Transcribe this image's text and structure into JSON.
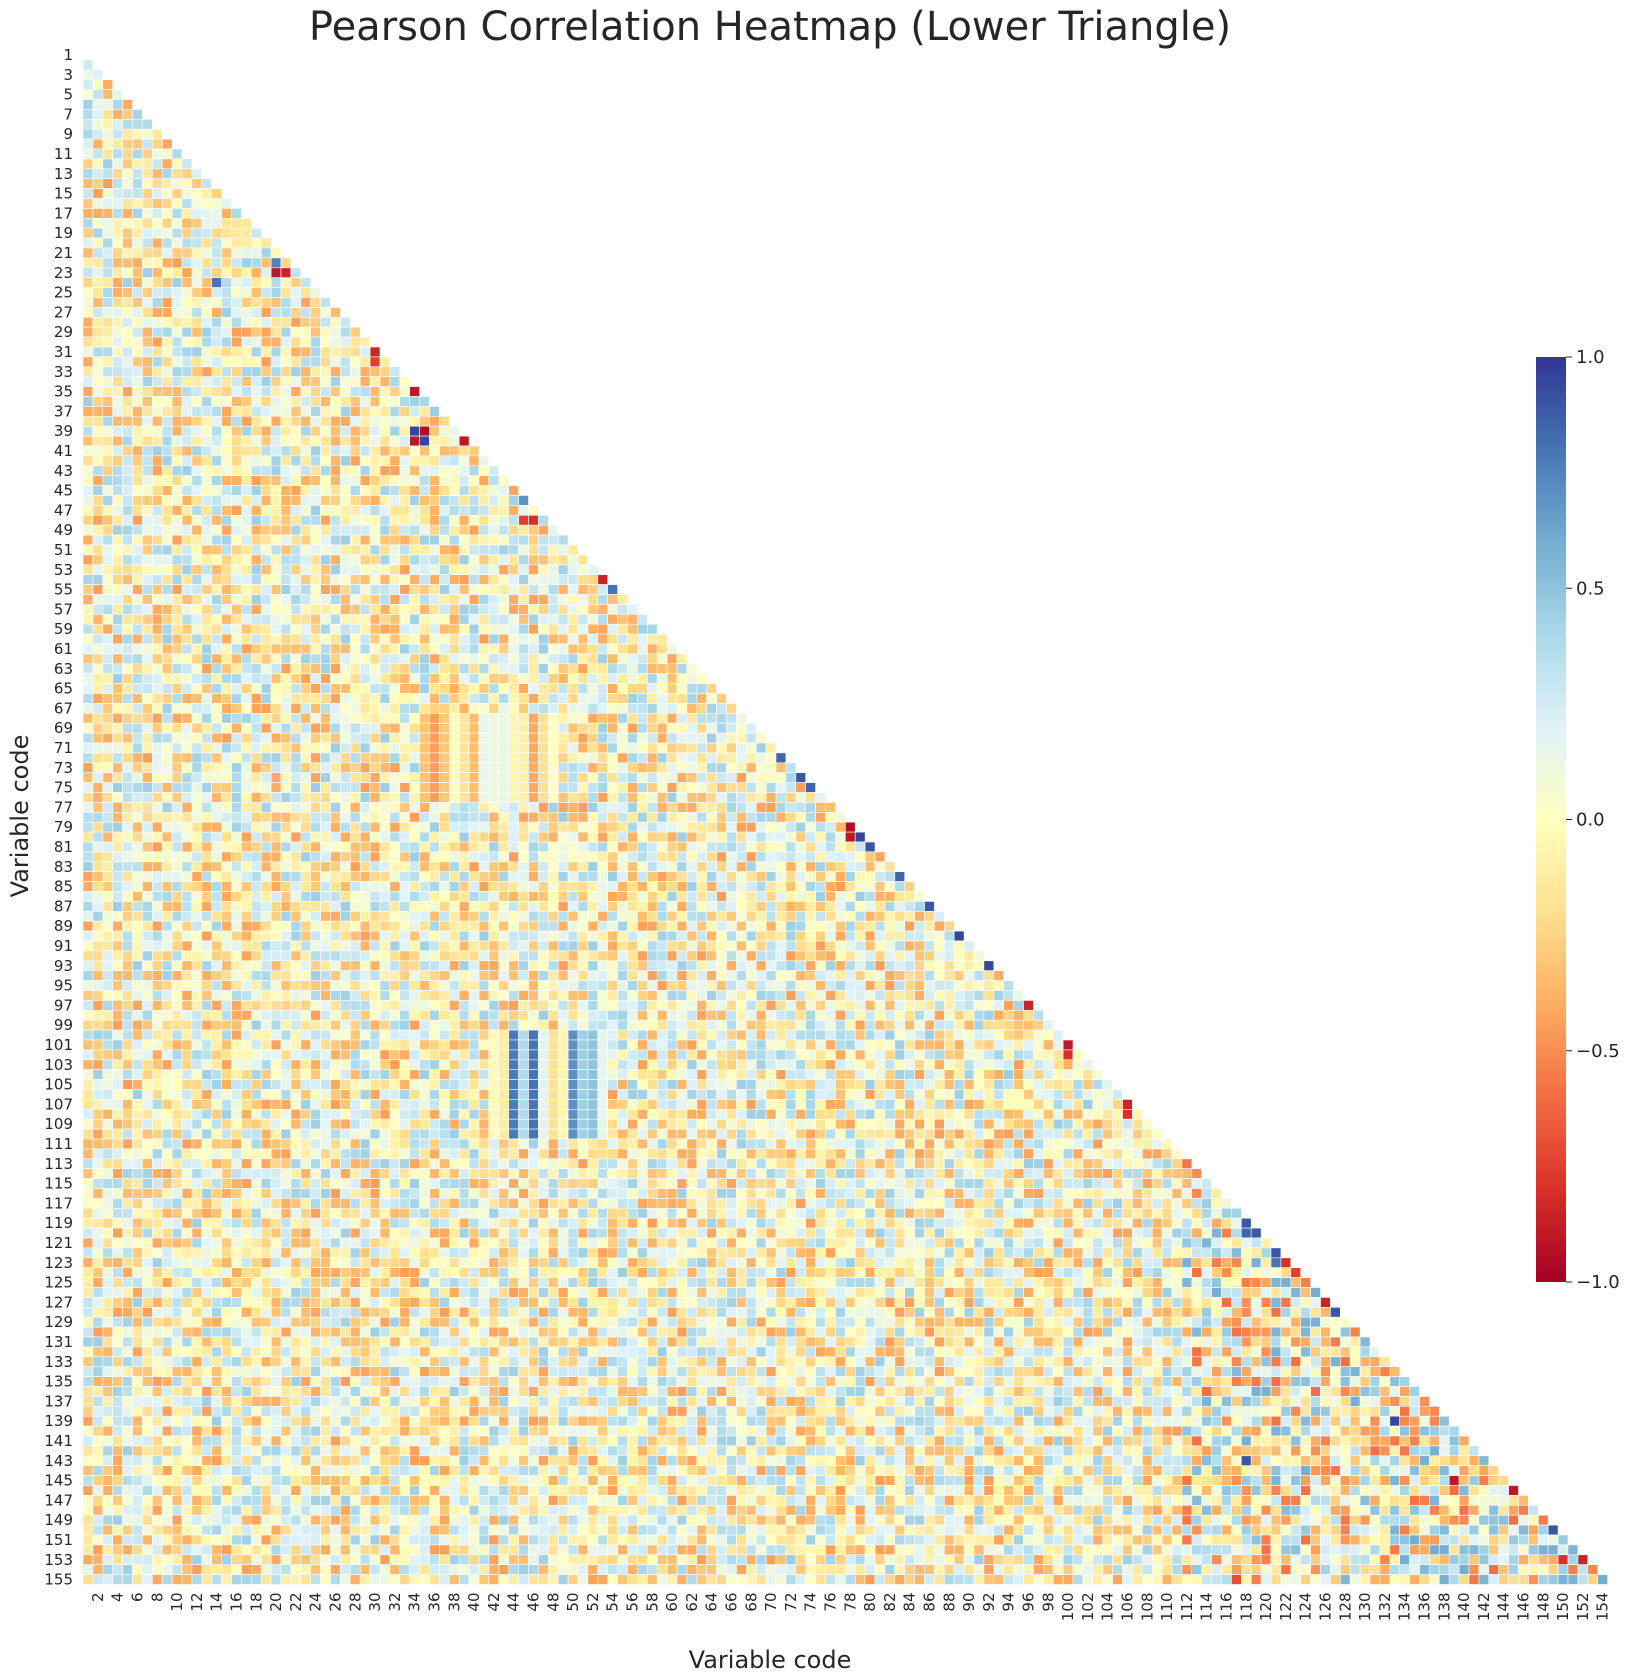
{
  "chart_data": {
    "type": "heatmap",
    "title": "Pearson Correlation Heatmap (Lower Triangle)",
    "xlabel": "Variable code",
    "ylabel": "Variable code",
    "variables": {
      "first": 1,
      "last": 155
    },
    "mask": "upper-triangle",
    "row_tick_labels": [
      "1",
      "3",
      "5",
      "7",
      "9",
      "11",
      "13",
      "15",
      "17",
      "19",
      "21",
      "23",
      "25",
      "27",
      "29",
      "31",
      "33",
      "35",
      "37",
      "39",
      "41",
      "43",
      "45",
      "47",
      "49",
      "51",
      "53",
      "55",
      "57",
      "59",
      "61",
      "63",
      "65",
      "67",
      "69",
      "71",
      "73",
      "75",
      "77",
      "79",
      "81",
      "83",
      "85",
      "87",
      "89",
      "91",
      "93",
      "95",
      "97",
      "99",
      "101",
      "103",
      "105",
      "107",
      "109",
      "111",
      "113",
      "115",
      "117",
      "119",
      "121",
      "123",
      "125",
      "127",
      "129",
      "131",
      "133",
      "135",
      "137",
      "139",
      "141",
      "143",
      "145",
      "147",
      "149",
      "151",
      "153",
      "155"
    ],
    "col_tick_labels": [
      "2",
      "4",
      "6",
      "8",
      "10",
      "12",
      "14",
      "16",
      "18",
      "20",
      "22",
      "24",
      "26",
      "28",
      "30",
      "32",
      "34",
      "36",
      "38",
      "40",
      "42",
      "44",
      "46",
      "48",
      "50",
      "52",
      "54",
      "56",
      "58",
      "60",
      "62",
      "64",
      "66",
      "68",
      "70",
      "72",
      "74",
      "76",
      "78",
      "80",
      "82",
      "84",
      "86",
      "88",
      "90",
      "92",
      "94",
      "96",
      "98",
      "100",
      "102",
      "104",
      "106",
      "108",
      "110",
      "112",
      "114",
      "116",
      "118",
      "120",
      "122",
      "124",
      "126",
      "128",
      "130",
      "132",
      "134",
      "136",
      "138",
      "140",
      "142",
      "144",
      "146",
      "148",
      "150",
      "152",
      "154"
    ],
    "colormap": "RdYlBu",
    "colormap_stops": [
      "#a50026",
      "#d73027",
      "#f46d43",
      "#fdae61",
      "#fee090",
      "#ffffbf",
      "#e0f3f8",
      "#abd9e9",
      "#74add1",
      "#4575b4",
      "#313695"
    ],
    "vmin": -1.0,
    "vmax": 1.0,
    "colorbar_ticks": [
      {
        "value": 1.0,
        "label": "1.0"
      },
      {
        "value": 0.5,
        "label": "0.5"
      },
      {
        "value": 0.0,
        "label": "0.0"
      },
      {
        "value": -0.5,
        "label": "−0.5"
      },
      {
        "value": -1.0,
        "label": "−1.0"
      }
    ],
    "notable_correlations": [
      {
        "row": 22,
        "col": 20,
        "value": 0.75
      },
      {
        "row": 23,
        "col": 20,
        "value": -0.9
      },
      {
        "row": 23,
        "col": 21,
        "value": -0.85
      },
      {
        "row": 24,
        "col": 14,
        "value": 0.8
      },
      {
        "row": 31,
        "col": 30,
        "value": -0.85
      },
      {
        "row": 32,
        "col": 30,
        "value": -0.75
      },
      {
        "row": 35,
        "col": 34,
        "value": -0.9
      },
      {
        "row": 39,
        "col": 34,
        "value": 0.95
      },
      {
        "row": 39,
        "col": 35,
        "value": -0.95
      },
      {
        "row": 40,
        "col": 34,
        "value": -0.9
      },
      {
        "row": 40,
        "col": 35,
        "value": 0.95
      },
      {
        "row": 40,
        "col": 39,
        "value": -0.9
      },
      {
        "row": 46,
        "col": 45,
        "value": 0.7
      },
      {
        "row": 48,
        "col": 45,
        "value": -0.75
      },
      {
        "row": 48,
        "col": 46,
        "value": -0.8
      },
      {
        "row": 54,
        "col": 53,
        "value": -0.85
      },
      {
        "row": 55,
        "col": 54,
        "value": 0.8
      },
      {
        "row": 72,
        "col": 71,
        "value": 0.85
      },
      {
        "row": 74,
        "col": 73,
        "value": 0.9
      },
      {
        "row": 75,
        "col": 74,
        "value": 0.85
      },
      {
        "row": 79,
        "col": 78,
        "value": -0.95
      },
      {
        "row": 80,
        "col": 78,
        "value": -0.9
      },
      {
        "row": 80,
        "col": 79,
        "value": 0.95
      },
      {
        "row": 81,
        "col": 80,
        "value": 0.9
      },
      {
        "row": 84,
        "col": 83,
        "value": 0.85
      },
      {
        "row": 87,
        "col": 86,
        "value": 0.9
      },
      {
        "row": 90,
        "col": 89,
        "value": 0.95
      },
      {
        "row": 93,
        "col": 92,
        "value": 0.95
      },
      {
        "row": 97,
        "col": 96,
        "value": -0.85
      },
      {
        "row": 101,
        "col": 100,
        "value": -0.9
      },
      {
        "row": 102,
        "col": 100,
        "value": -0.8
      },
      {
        "row": 107,
        "col": 106,
        "value": -0.85
      },
      {
        "row": 108,
        "col": 106,
        "value": -0.8
      },
      {
        "row": 119,
        "col": 118,
        "value": 0.9
      },
      {
        "row": 120,
        "col": 118,
        "value": 0.85
      },
      {
        "row": 120,
        "col": 119,
        "value": 0.9
      },
      {
        "row": 122,
        "col": 121,
        "value": 0.9
      },
      {
        "row": 123,
        "col": 121,
        "value": 0.8
      },
      {
        "row": 123,
        "col": 122,
        "value": -0.8
      },
      {
        "row": 124,
        "col": 123,
        "value": -0.75
      },
      {
        "row": 127,
        "col": 126,
        "value": -0.85
      },
      {
        "row": 128,
        "col": 127,
        "value": 0.9
      },
      {
        "row": 139,
        "col": 133,
        "value": 0.95
      },
      {
        "row": 143,
        "col": 118,
        "value": 0.9
      },
      {
        "row": 145,
        "col": 139,
        "value": -0.9
      },
      {
        "row": 146,
        "col": 145,
        "value": -0.9
      },
      {
        "row": 150,
        "col": 149,
        "value": 0.9
      },
      {
        "row": 153,
        "col": 150,
        "value": -0.8
      },
      {
        "row": 153,
        "col": 152,
        "value": -0.85
      },
      {
        "row": 155,
        "col": 117,
        "value": -0.7
      },
      {
        "row": 155,
        "col": 154,
        "value": 0.6
      }
    ]
  }
}
